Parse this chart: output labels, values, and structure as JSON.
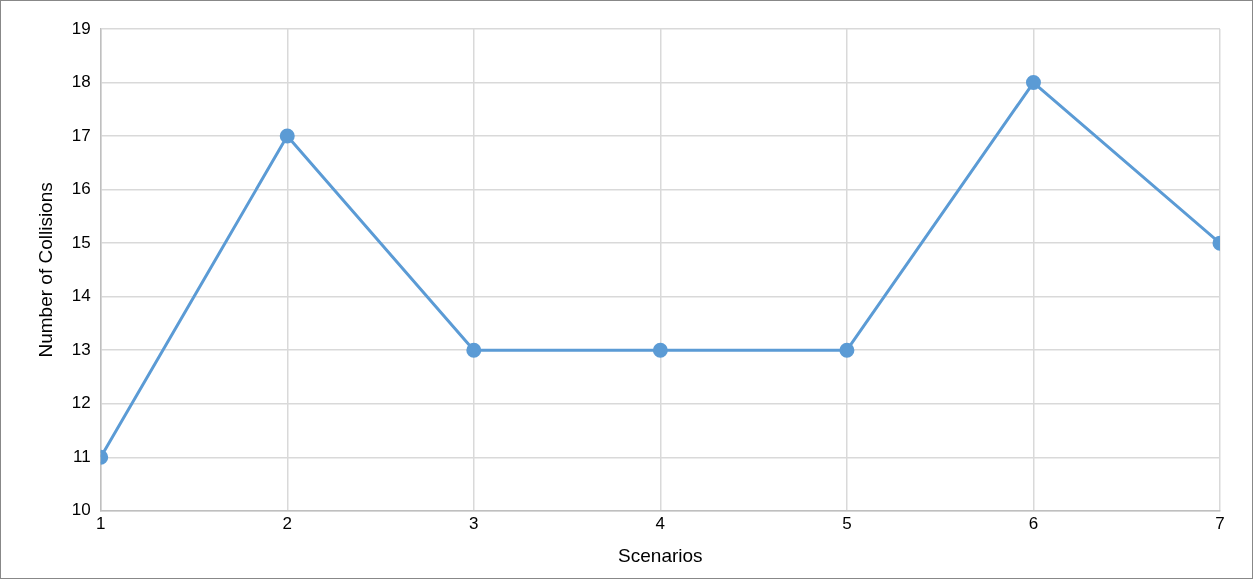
{
  "chart_data": {
    "type": "line",
    "xlabel": "Scenarios",
    "ylabel": "Number of Collisions",
    "x": [
      1,
      2,
      3,
      4,
      5,
      6,
      7
    ],
    "series": [
      {
        "color": "#5b9bd5",
        "values": [
          11,
          17,
          13,
          13,
          13,
          18,
          15
        ]
      }
    ],
    "xlim": [
      1,
      7
    ],
    "xticks": [
      1,
      2,
      3,
      4,
      5,
      6,
      7
    ],
    "ylim": [
      10,
      19
    ],
    "yticks": [
      10,
      11,
      12,
      13,
      14,
      15,
      16,
      17,
      18,
      19
    ],
    "grid": true,
    "legend": false,
    "marker": "circle",
    "line_style": "solid"
  }
}
